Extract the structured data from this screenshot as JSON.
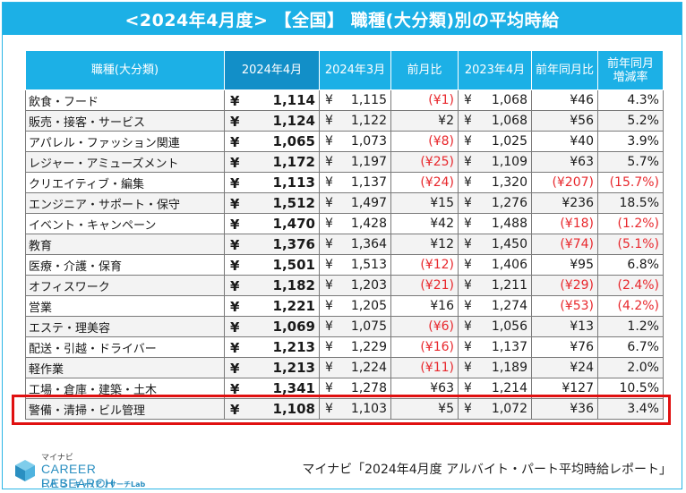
{
  "title": "<2024年4月度> 【全国】 職種(大分類)別の平均時給",
  "colors": {
    "header_bg": "#1cb0e6",
    "header_selected": "#128fc8",
    "negative": "#e8282d",
    "highlight": "#e01010"
  },
  "table": {
    "headers": [
      "職種(大分類)",
      "2024年4月",
      "2024年3月",
      "前月比",
      "2023年4月",
      "前年同月比",
      "前年同月",
      "増減率"
    ],
    "currency_symbol": "¥",
    "rows": [
      {
        "name": "飲食・フード",
        "apr24": "1,114",
        "mar24": "1,115",
        "mom": "(¥1)",
        "mom_neg": true,
        "apr23": "1,068",
        "yoy": "¥46",
        "yoy_neg": false,
        "rate": "4.3%",
        "rate_neg": false
      },
      {
        "name": "販売・接客・サービス",
        "apr24": "1,124",
        "mar24": "1,122",
        "mom": "¥2",
        "mom_neg": false,
        "apr23": "1,068",
        "yoy": "¥56",
        "yoy_neg": false,
        "rate": "5.2%",
        "rate_neg": false
      },
      {
        "name": "アパレル・ファッション関連",
        "apr24": "1,065",
        "mar24": "1,073",
        "mom": "(¥8)",
        "mom_neg": true,
        "apr23": "1,025",
        "yoy": "¥40",
        "yoy_neg": false,
        "rate": "3.9%",
        "rate_neg": false
      },
      {
        "name": "レジャー・アミューズメント",
        "apr24": "1,172",
        "mar24": "1,197",
        "mom": "(¥25)",
        "mom_neg": true,
        "apr23": "1,109",
        "yoy": "¥63",
        "yoy_neg": false,
        "rate": "5.7%",
        "rate_neg": false
      },
      {
        "name": "クリエイティブ・編集",
        "apr24": "1,113",
        "mar24": "1,137",
        "mom": "(¥24)",
        "mom_neg": true,
        "apr23": "1,320",
        "yoy": "(¥207)",
        "yoy_neg": true,
        "rate": "(15.7%)",
        "rate_neg": true
      },
      {
        "name": "エンジニア・サポート・保守",
        "apr24": "1,512",
        "mar24": "1,497",
        "mom": "¥15",
        "mom_neg": false,
        "apr23": "1,276",
        "yoy": "¥236",
        "yoy_neg": false,
        "rate": "18.5%",
        "rate_neg": false
      },
      {
        "name": "イベント・キャンペーン",
        "apr24": "1,470",
        "mar24": "1,428",
        "mom": "¥42",
        "mom_neg": false,
        "apr23": "1,488",
        "yoy": "(¥18)",
        "yoy_neg": true,
        "rate": "(1.2%)",
        "rate_neg": true
      },
      {
        "name": "教育",
        "apr24": "1,376",
        "mar24": "1,364",
        "mom": "¥12",
        "mom_neg": false,
        "apr23": "1,450",
        "yoy": "(¥74)",
        "yoy_neg": true,
        "rate": "(5.1%)",
        "rate_neg": true
      },
      {
        "name": "医療・介護・保育",
        "apr24": "1,501",
        "mar24": "1,513",
        "mom": "(¥12)",
        "mom_neg": true,
        "apr23": "1,406",
        "yoy": "¥95",
        "yoy_neg": false,
        "rate": "6.8%",
        "rate_neg": false
      },
      {
        "name": "オフィスワーク",
        "apr24": "1,182",
        "mar24": "1,203",
        "mom": "(¥21)",
        "mom_neg": true,
        "apr23": "1,211",
        "yoy": "(¥29)",
        "yoy_neg": true,
        "rate": "(2.4%)",
        "rate_neg": true
      },
      {
        "name": "営業",
        "apr24": "1,221",
        "mar24": "1,205",
        "mom": "¥16",
        "mom_neg": false,
        "apr23": "1,274",
        "yoy": "(¥53)",
        "yoy_neg": true,
        "rate": "(4.2%)",
        "rate_neg": true
      },
      {
        "name": "エステ・理美容",
        "apr24": "1,069",
        "mar24": "1,075",
        "mom": "(¥6)",
        "mom_neg": true,
        "apr23": "1,056",
        "yoy": "¥13",
        "yoy_neg": false,
        "rate": "1.2%",
        "rate_neg": false
      },
      {
        "name": "配送・引越・ドライバー",
        "apr24": "1,213",
        "mar24": "1,229",
        "mom": "(¥16)",
        "mom_neg": true,
        "apr23": "1,137",
        "yoy": "¥76",
        "yoy_neg": false,
        "rate": "6.7%",
        "rate_neg": false
      },
      {
        "name": "軽作業",
        "apr24": "1,213",
        "mar24": "1,224",
        "mom": "(¥11)",
        "mom_neg": true,
        "apr23": "1,189",
        "yoy": "¥24",
        "yoy_neg": false,
        "rate": "2.0%",
        "rate_neg": false
      },
      {
        "name": "工場・倉庫・建築・土木",
        "apr24": "1,341",
        "mar24": "1,278",
        "mom": "¥63",
        "mom_neg": false,
        "apr23": "1,214",
        "yoy": "¥127",
        "yoy_neg": false,
        "rate": "10.5%",
        "rate_neg": false
      },
      {
        "name": "警備・清掃・ビル管理",
        "apr24": "1,108",
        "mar24": "1,103",
        "mom": "¥5",
        "mom_neg": false,
        "apr23": "1,072",
        "yoy": "¥36",
        "yoy_neg": false,
        "rate": "3.4%",
        "rate_neg": false
      }
    ]
  },
  "footer": {
    "source": "マイナビ「2024年4月度 アルバイト・パート平均時給レポート」",
    "logo_small": "マイナビ",
    "logo_main": "CAREER RESEARCH",
    "logo_lab": "LAB",
    "logo_sub": "キャリアリサーチLab"
  }
}
